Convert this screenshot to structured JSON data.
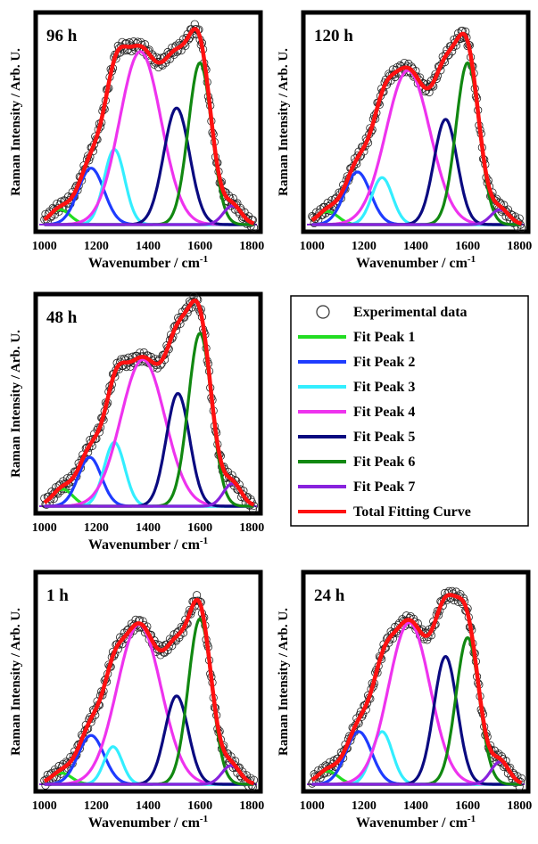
{
  "figure": {
    "y_label": "Raman Intensity / Arb. U.",
    "x_label": "Wavenumber / cm",
    "x_label_superscript": "-1"
  },
  "legend": [
    {
      "label": "Experimental data",
      "type": "marker",
      "color": "#000000"
    },
    {
      "label": "Fit Peak 1",
      "type": "line",
      "color": "#22dd22"
    },
    {
      "label": "Fit Peak 2",
      "type": "line",
      "color": "#1e3cff"
    },
    {
      "label": "Fit Peak 3",
      "type": "line",
      "color": "#33eeff"
    },
    {
      "label": "Fit Peak 4",
      "type": "line",
      "color": "#ee33ee"
    },
    {
      "label": "Fit Peak 5",
      "type": "line",
      "color": "#0a0a80"
    },
    {
      "label": "Fit Peak 6",
      "type": "line",
      "color": "#118811"
    },
    {
      "label": "Fit Peak 7",
      "type": "line",
      "color": "#8822dd"
    },
    {
      "label": "Total Fitting Curve",
      "type": "line",
      "color": "#ff1111"
    }
  ],
  "chart_data": [
    {
      "type": "line",
      "title": "96 h",
      "xlabel": "Wavenumber / cm-1",
      "ylabel": "Raman Intensity / Arb. U.",
      "xlim": [
        980,
        1820
      ],
      "ylim": [
        0,
        1.1
      ],
      "xticks": [
        1000,
        1200,
        1400,
        1600,
        1800
      ],
      "series": [
        {
          "name": "Fit Peak 1",
          "center": 1060,
          "height": 0.08,
          "width": 40
        },
        {
          "name": "Fit Peak 2",
          "center": 1180,
          "height": 0.3,
          "width": 50
        },
        {
          "name": "Fit Peak 3",
          "center": 1270,
          "height": 0.4,
          "width": 40
        },
        {
          "name": "Fit Peak 4",
          "center": 1370,
          "height": 0.92,
          "width": 80
        },
        {
          "name": "Fit Peak 5",
          "center": 1510,
          "height": 0.62,
          "width": 50
        },
        {
          "name": "Fit Peak 6",
          "center": 1600,
          "height": 0.86,
          "width": 45
        },
        {
          "name": "Fit Peak 7",
          "center": 1725,
          "height": 0.1,
          "width": 35
        }
      ]
    },
    {
      "type": "line",
      "title": "120 h",
      "xlabel": "Wavenumber / cm-1",
      "ylabel": "Raman Intensity / Arb. U.",
      "xlim": [
        980,
        1820
      ],
      "ylim": [
        0,
        1.1
      ],
      "xticks": [
        1000,
        1200,
        1400,
        1600,
        1800
      ],
      "series": [
        {
          "name": "Fit Peak 1",
          "center": 1060,
          "height": 0.07,
          "width": 40
        },
        {
          "name": "Fit Peak 2",
          "center": 1175,
          "height": 0.28,
          "width": 50
        },
        {
          "name": "Fit Peak 3",
          "center": 1270,
          "height": 0.25,
          "width": 40
        },
        {
          "name": "Fit Peak 4",
          "center": 1370,
          "height": 0.82,
          "width": 85
        },
        {
          "name": "Fit Peak 5",
          "center": 1515,
          "height": 0.56,
          "width": 45
        },
        {
          "name": "Fit Peak 6",
          "center": 1600,
          "height": 0.86,
          "width": 45
        },
        {
          "name": "Fit Peak 7",
          "center": 1725,
          "height": 0.08,
          "width": 35
        }
      ]
    },
    {
      "type": "line",
      "title": "48 h",
      "xlabel": "Wavenumber / cm-1",
      "ylabel": "Raman Intensity / Arb. U.",
      "xlim": [
        980,
        1820
      ],
      "ylim": [
        0,
        1.1
      ],
      "xticks": [
        1000,
        1200,
        1400,
        1600,
        1800
      ],
      "series": [
        {
          "name": "Fit Peak 1",
          "center": 1070,
          "height": 0.09,
          "width": 40
        },
        {
          "name": "Fit Peak 2",
          "center": 1175,
          "height": 0.26,
          "width": 45
        },
        {
          "name": "Fit Peak 3",
          "center": 1270,
          "height": 0.34,
          "width": 40
        },
        {
          "name": "Fit Peak 4",
          "center": 1380,
          "height": 0.78,
          "width": 85
        },
        {
          "name": "Fit Peak 5",
          "center": 1515,
          "height": 0.6,
          "width": 45
        },
        {
          "name": "Fit Peak 6",
          "center": 1600,
          "height": 0.92,
          "width": 45
        },
        {
          "name": "Fit Peak 7",
          "center": 1725,
          "height": 0.12,
          "width": 35
        }
      ]
    },
    {
      "type": "line",
      "title": "1 h",
      "xlabel": "Wavenumber / cm-1",
      "ylabel": "Raman Intensity / Arb. U.",
      "xlim": [
        980,
        1820
      ],
      "ylim": [
        0,
        1.1
      ],
      "xticks": [
        1000,
        1200,
        1400,
        1600,
        1800
      ],
      "series": [
        {
          "name": "Fit Peak 1",
          "center": 1065,
          "height": 0.06,
          "width": 40
        },
        {
          "name": "Fit Peak 2",
          "center": 1180,
          "height": 0.26,
          "width": 50
        },
        {
          "name": "Fit Peak 3",
          "center": 1265,
          "height": 0.2,
          "width": 35
        },
        {
          "name": "Fit Peak 4",
          "center": 1365,
          "height": 0.85,
          "width": 85
        },
        {
          "name": "Fit Peak 5",
          "center": 1510,
          "height": 0.47,
          "width": 45
        },
        {
          "name": "Fit Peak 6",
          "center": 1600,
          "height": 0.88,
          "width": 45
        },
        {
          "name": "Fit Peak 7",
          "center": 1720,
          "height": 0.1,
          "width": 35
        }
      ]
    },
    {
      "type": "line",
      "title": "24 h",
      "xlabel": "Wavenumber / cm-1",
      "ylabel": "Raman Intensity / Arb. U.",
      "xlim": [
        980,
        1820
      ],
      "ylim": [
        0,
        1.1
      ],
      "xticks": [
        1000,
        1200,
        1400,
        1600,
        1800
      ],
      "series": [
        {
          "name": "Fit Peak 1",
          "center": 1060,
          "height": 0.07,
          "width": 40
        },
        {
          "name": "Fit Peak 2",
          "center": 1180,
          "height": 0.28,
          "width": 50
        },
        {
          "name": "Fit Peak 3",
          "center": 1270,
          "height": 0.28,
          "width": 40
        },
        {
          "name": "Fit Peak 4",
          "center": 1375,
          "height": 0.86,
          "width": 80
        },
        {
          "name": "Fit Peak 5",
          "center": 1515,
          "height": 0.68,
          "width": 45
        },
        {
          "name": "Fit Peak 6",
          "center": 1600,
          "height": 0.78,
          "width": 45
        },
        {
          "name": "Fit Peak 7",
          "center": 1725,
          "height": 0.12,
          "width": 35
        }
      ]
    }
  ]
}
